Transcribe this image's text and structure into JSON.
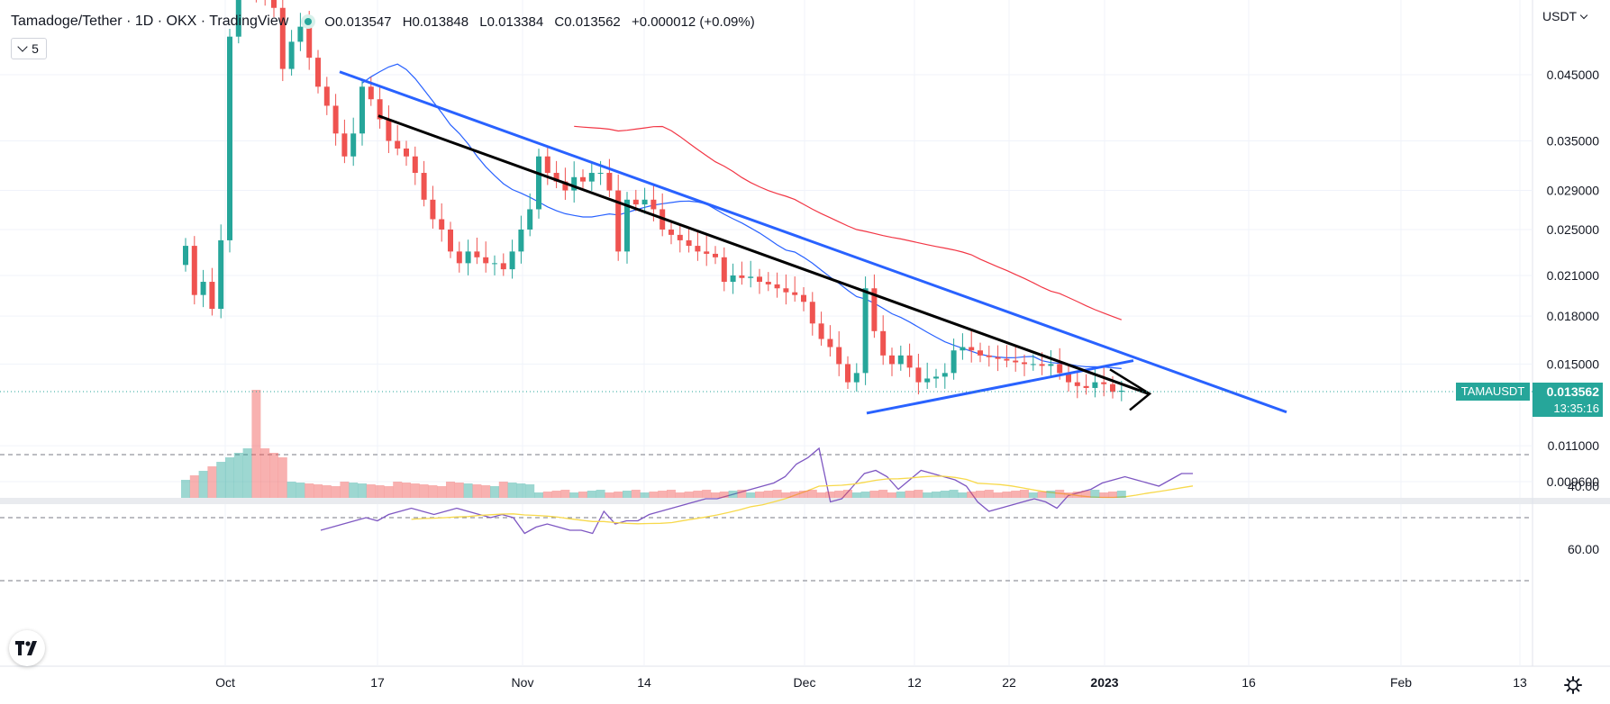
{
  "legend": {
    "title": "Tamadoge/Tether · 1D · OKX · TradingView",
    "open": "O0.013547",
    "high": "H0.013848",
    "low": "L0.013384",
    "close": "C0.013562",
    "change": "+0.000012 (+0.09%)"
  },
  "indicator_button": {
    "label": "5"
  },
  "currency_selector": {
    "label": "USDT"
  },
  "last_price": {
    "symbol": "TAMAUSDT",
    "price": "0.013562",
    "countdown": "13:35:16"
  },
  "colors": {
    "up": "#26a69a",
    "down": "#ef5350",
    "ma_short": "#2962ff",
    "ma_long": "#f23645",
    "trendline": "#2962ff",
    "rsi": "#7e57c2",
    "rsi_ma": "#f7d94c"
  },
  "chart_data": [
    {
      "type": "candlestick",
      "price_axis_ticks": [
        "0.045000",
        "0.035000",
        "0.029000",
        "0.025000",
        "0.021000",
        "0.018000",
        "0.015000",
        "0.011000",
        "0.009600"
      ],
      "time_axis_ticks": [
        "Oct",
        "17",
        "Nov",
        "14",
        "Dec",
        "12",
        "22",
        "2023",
        "16",
        "Feb",
        "13"
      ],
      "ylim": [
        0.0088,
        0.0623
      ],
      "scale": "log",
      "grid": true,
      "overlays": [
        "short moving average (blue)",
        "long moving average (red)",
        "volume histogram"
      ],
      "drawings": [
        "descending upper trendline (blue)",
        "ascending lower trendline (blue)",
        "descending black trendline",
        "arrow pointing down-right"
      ]
    },
    {
      "type": "line",
      "panel": "oscillator",
      "y_ticks": [
        "60.00",
        "40.00"
      ],
      "ylim": [
        24,
        76
      ],
      "series_colors": [
        "#7e57c2",
        "#f7d94c"
      ]
    }
  ]
}
